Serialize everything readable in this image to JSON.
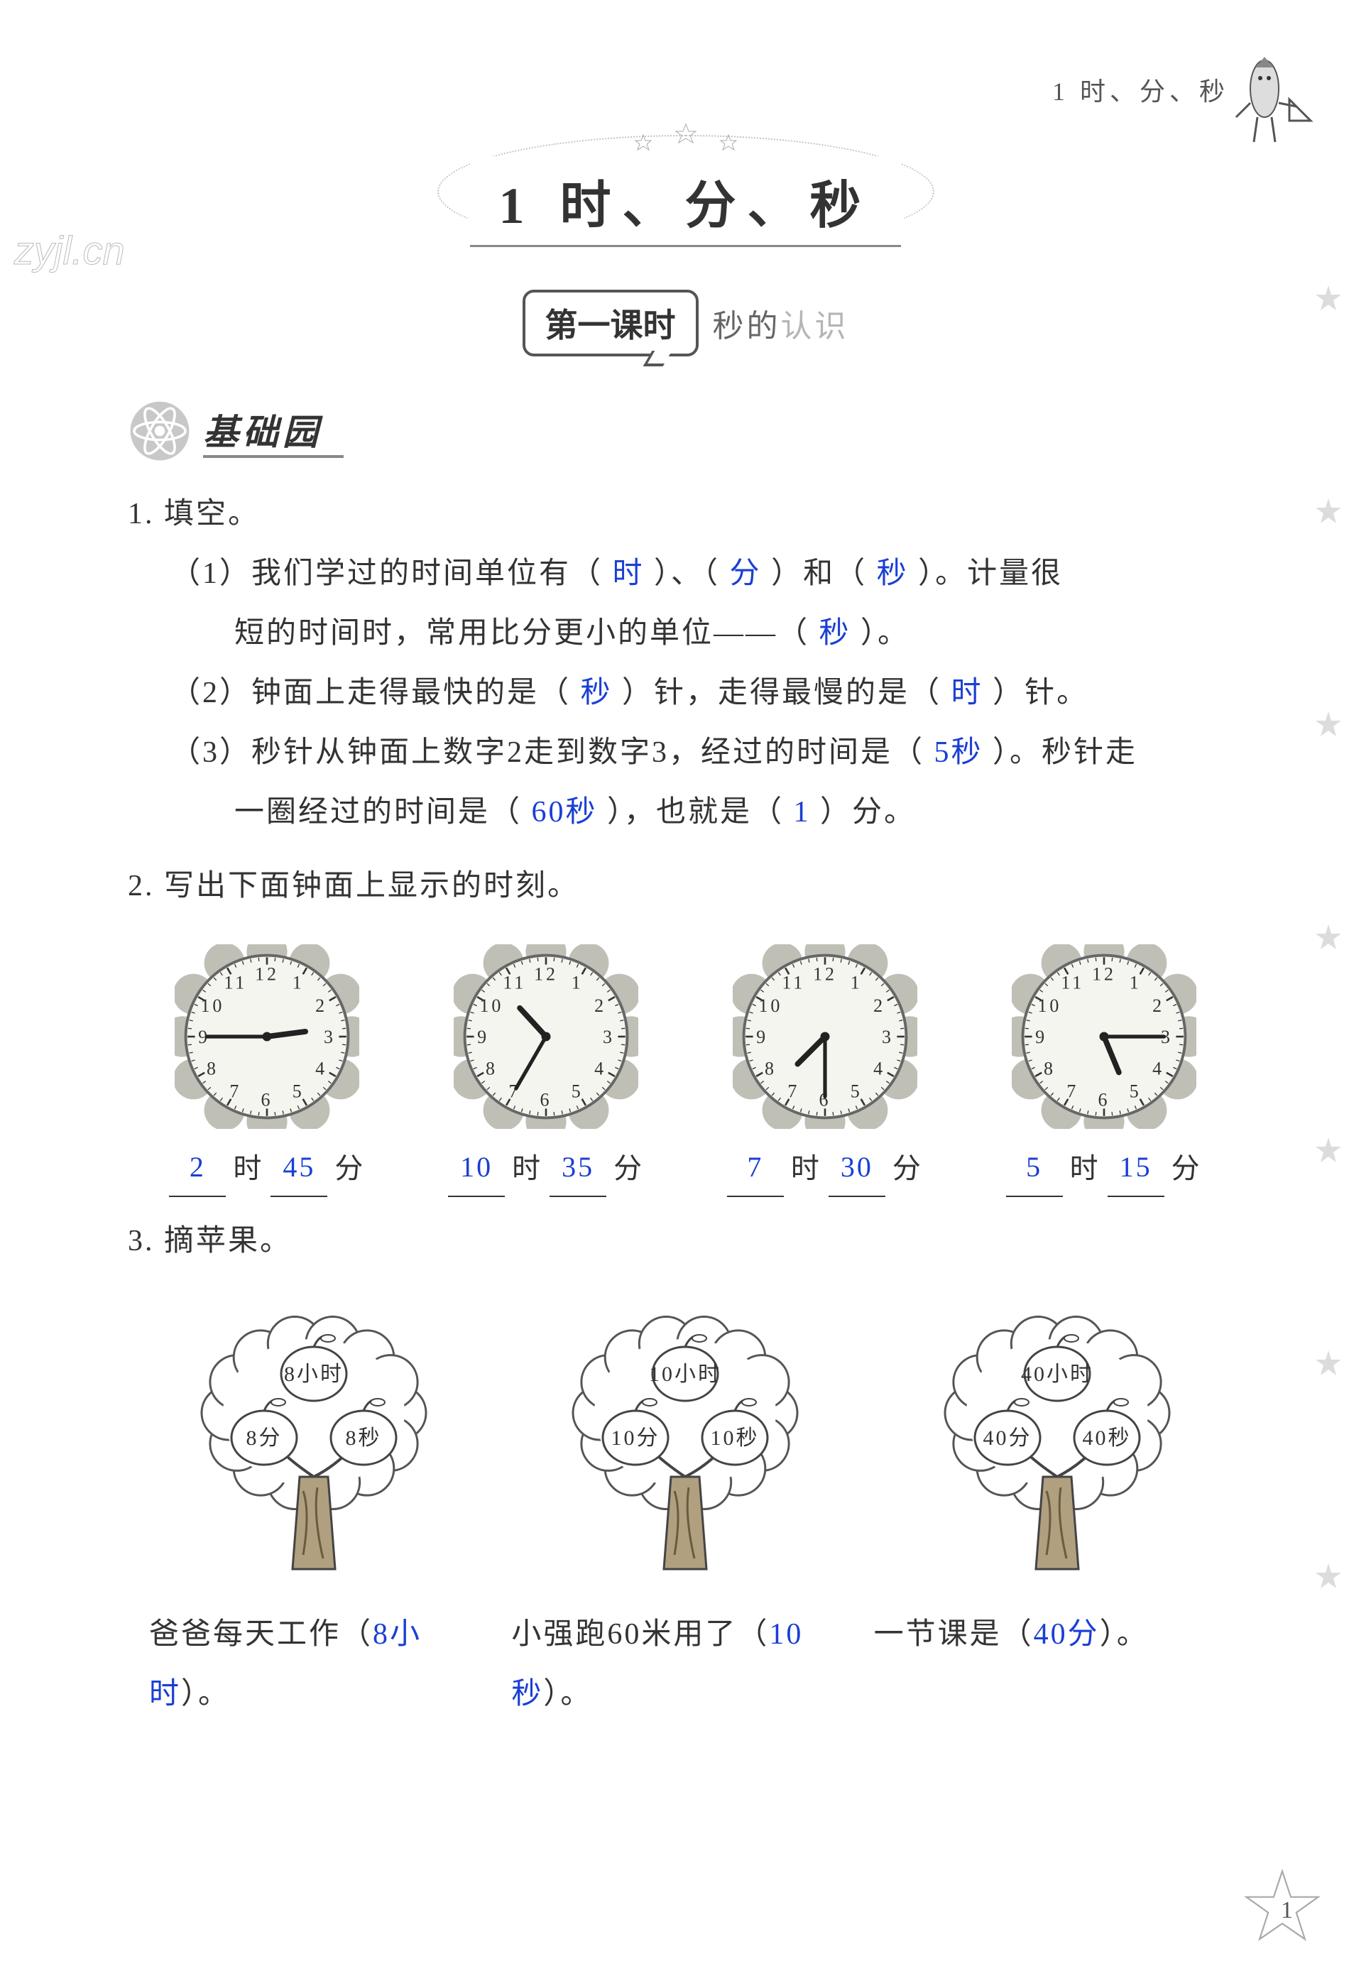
{
  "colors": {
    "text": "#333333",
    "answer": "#1a3fd4",
    "faint": "#b5b5b5",
    "border": "#555555",
    "decor": "#999999",
    "watermark": "#cccccc",
    "white": "#ffffff",
    "clockFace": "#f5f5f0",
    "clockPetal": "#8a8a7a"
  },
  "header": {
    "crumb": "1  时、分、秒",
    "watermark": "zyjl.cn"
  },
  "chapter": {
    "title": "1  时、分、秒"
  },
  "lesson": {
    "pill": "第一课时",
    "sub_prefix": "秒的",
    "sub_faint": "认识"
  },
  "section": {
    "title": "基础园"
  },
  "q1": {
    "head": "1. 填空。",
    "p1_a": "（1）我们学过的时间单位有（",
    "p1_ans1": "时",
    "p1_b": "）、（",
    "p1_ans2": "分",
    "p1_c": "）和（",
    "p1_ans3": "秒",
    "p1_d": "）。计量很",
    "p1_line2a": "短的时间时，常用比分更小的单位——（",
    "p1_line2_ans": "秒",
    "p1_line2b": "）。",
    "p2_a": "（2）钟面上走得最快的是（",
    "p2_ans1": "秒",
    "p2_b": "）针，走得最慢的是（",
    "p2_ans2": "时",
    "p2_c": "）针。",
    "p3_a": "（3）秒针从钟面上数字2走到数字3，经过的时间是（",
    "p3_ans1": "5秒",
    "p3_b": "）。秒针走",
    "p3_line2a": "一圈经过的时间是（",
    "p3_line2_ans1": "60秒",
    "p3_line2b": "），也就是（",
    "p3_line2_ans2": "1",
    "p3_line2c": "）分。"
  },
  "q2": {
    "head": "2. 写出下面钟面上显示的时刻。",
    "label_hour": "时",
    "label_min": "分",
    "clocks": [
      {
        "hour": 2,
        "minute": 45,
        "ans_h": "2",
        "ans_m": "45",
        "hourAngle": 82.5,
        "minAngle": 270
      },
      {
        "hour": 10,
        "minute": 35,
        "ans_h": "10",
        "ans_m": "35",
        "hourAngle": 317.5,
        "minAngle": 210
      },
      {
        "hour": 7,
        "minute": 30,
        "ans_h": "7",
        "ans_m": "30",
        "hourAngle": 225,
        "minAngle": 180
      },
      {
        "hour": 5,
        "minute": 15,
        "ans_h": "5",
        "ans_m": "15",
        "hourAngle": 157.5,
        "minAngle": 90
      }
    ]
  },
  "q3": {
    "head": "3. 摘苹果。",
    "trees": [
      {
        "top": "8小时",
        "left": "8分",
        "right": "8秒"
      },
      {
        "top": "10小时",
        "left": "10分",
        "right": "10秒"
      },
      {
        "top": "40小时",
        "left": "40分",
        "right": "40秒"
      }
    ],
    "lines": [
      {
        "pre": "爸爸每天工作（",
        "ans": "8小时",
        "post": "）。"
      },
      {
        "pre": "小强跑60米用了（",
        "ans": "10秒",
        "post": "）。"
      },
      {
        "pre": "一节课是（",
        "ans": "40分",
        "post": "）。"
      }
    ]
  },
  "pageNumber": "1"
}
